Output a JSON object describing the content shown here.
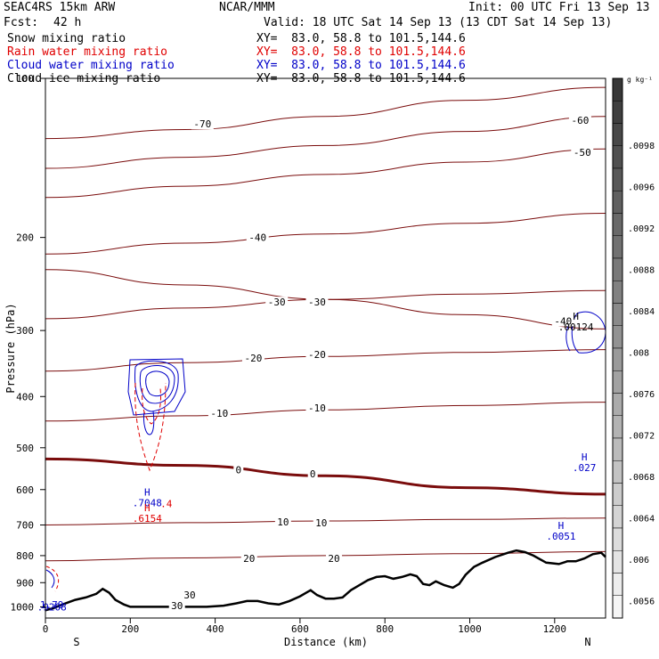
{
  "header": {
    "model": "SEAC4RS 15km ARW",
    "org": "NCAR/MMM",
    "init": "Init: 00 UTC Fri 13 Sep 13",
    "fcst_label": "Fcst:",
    "fcst_value": "42 h",
    "valid": "Valid: 18 UTC Sat 14 Sep 13 (13 CDT Sat 14 Sep 13)",
    "fields": [
      {
        "name": "Snow mixing ratio",
        "xy": "XY=  83.0, 58.8 to 101.5,144.6",
        "color": "#000000"
      },
      {
        "name": "Rain water mixing ratio",
        "xy": "XY=  83.0, 58.8 to 101.5,144.6",
        "color": "#e00000"
      },
      {
        "name": "Cloud water mixing ratio",
        "xy": "XY=  83.0, 58.8 to 101.5,144.6",
        "color": "#0000c8"
      },
      {
        "name": "Cloud ice mixing ratio",
        "xy": "XY=  83.0, 58.8 to 101.5,144.6",
        "color": "#000000"
      }
    ]
  },
  "chart_data": {
    "type": "contour-cross-section",
    "xlabel": "Distance (km)",
    "ylabel": "Pressure (hPa)",
    "xlim": [
      0,
      1320
    ],
    "ylim": [
      100,
      1050
    ],
    "y_scale": "log-p",
    "x_ticks": [
      "0",
      "200",
      "400",
      "600",
      "800",
      "1000",
      "1200"
    ],
    "y_ticks": [
      "100",
      "200",
      "300",
      "400",
      "500",
      "600",
      "700",
      "800",
      "900",
      "1000"
    ],
    "endpoints": {
      "left": "S",
      "right": "N"
    },
    "colorbar": {
      "unit": "g kg⁻¹",
      "labels": [
        ".0098",
        ".0096",
        ".0092",
        ".0088",
        ".0084",
        ".008",
        ".0076",
        ".0072",
        ".0068",
        ".0064",
        ".006",
        ".0056"
      ]
    },
    "temperature_contours_c": [
      {
        "label": "-70",
        "p": [
          130,
          125,
          118,
          110,
          104
        ]
      },
      {
        "label": "-60",
        "p": [
          148,
          141,
          134,
          126,
          118
        ]
      },
      {
        "label": "-50",
        "p": [
          168,
          160,
          152,
          144,
          136
        ]
      },
      {
        "label": "-40",
        "p": [
          215,
          205,
          197,
          188,
          180
        ]
      },
      {
        "label": "-40",
        "p": [
          230,
          246,
          262,
          280,
          298
        ]
      },
      {
        "label": "-30",
        "p": [
          285,
          272,
          262,
          256,
          252
        ]
      },
      {
        "label": "-20",
        "p": [
          358,
          345,
          336,
          330,
          326
        ]
      },
      {
        "label": "-10",
        "p": [
          445,
          435,
          424,
          416,
          410
        ]
      },
      {
        "label": "0",
        "p": [
          525,
          540,
          565,
          595,
          612
        ]
      },
      {
        "label": "10",
        "p": [
          700,
          693,
          688,
          683,
          679
        ]
      },
      {
        "label": "20",
        "p": [
          818,
          808,
          800,
          793,
          786
        ]
      }
    ],
    "contour_x_km": [
      0,
      330,
      660,
      990,
      1320
    ],
    "contour_labels": [
      {
        "text": "-70",
        "x": 370,
        "p": 122
      },
      {
        "text": "-60",
        "x": 1260,
        "p": 120
      },
      {
        "text": "-50",
        "x": 1265,
        "p": 138
      },
      {
        "text": "-40",
        "x": 500,
        "p": 200
      },
      {
        "text": "-40",
        "x": 1220,
        "p": 288
      },
      {
        "text": "-30",
        "x": 545,
        "p": 265
      },
      {
        "text": "-30",
        "x": 640,
        "p": 265
      },
      {
        "text": "-20",
        "x": 490,
        "p": 338
      },
      {
        "text": "-20",
        "x": 640,
        "p": 333
      },
      {
        "text": "-10",
        "x": 410,
        "p": 430
      },
      {
        "text": "-10",
        "x": 640,
        "p": 420
      },
      {
        "text": "0",
        "x": 455,
        "p": 550
      },
      {
        "text": "0",
        "x": 630,
        "p": 560
      },
      {
        "text": "10",
        "x": 560,
        "p": 690
      },
      {
        "text": "10",
        "x": 650,
        "p": 693
      },
      {
        "text": "20",
        "x": 480,
        "p": 810
      },
      {
        "text": "20",
        "x": 680,
        "p": 810
      },
      {
        "text": "30",
        "x": 340,
        "p": 950
      },
      {
        "text": "30",
        "x": 310,
        "p": 995
      }
    ],
    "maxima": [
      {
        "text": "H",
        "value": ".00124",
        "x": 1250,
        "p": 295,
        "color": "#000000"
      },
      {
        "text": "H",
        "value": ".027",
        "x": 1270,
        "p": 545,
        "color": "#0000c8"
      },
      {
        "text": "H",
        "value": ".7048",
        "x": 240,
        "p": 635,
        "color": "#0000c8"
      },
      {
        "text": "H",
        "value": ".6154",
        "x": 240,
        "p": 680,
        "color": "#e00000"
      },
      {
        "text": "H",
        "value": ".0051",
        "x": 1215,
        "p": 735,
        "color": "#0000c8"
      },
      {
        "text": "",
        "value": ".4",
        "x": 285,
        "p": 638,
        "color": "#e00000"
      },
      {
        "text": "",
        "value": "1.79",
        "x": 15,
        "p": 990,
        "color": "#0000c8"
      },
      {
        "text": "",
        "value": ".9208",
        "x": 15,
        "p": 1000,
        "color": "#0000c8"
      }
    ],
    "terrain": {
      "x": [
        0,
        20,
        40,
        70,
        95,
        120,
        135,
        150,
        165,
        185,
        200,
        220,
        260,
        300,
        340,
        380,
        420,
        450,
        475,
        500,
        525,
        550,
        575,
        600,
        625,
        640,
        660,
        680,
        700,
        720,
        740,
        760,
        780,
        800,
        820,
        840,
        860,
        875,
        890,
        905,
        920,
        940,
        960,
        975,
        990,
        1010,
        1030,
        1060,
        1090,
        1110,
        1130,
        1150,
        1180,
        1210,
        1230,
        1250,
        1270,
        1290,
        1310,
        1320
      ],
      "p": [
        1015,
        1005,
        990,
        970,
        960,
        945,
        925,
        940,
        970,
        990,
        1000,
        1000,
        1000,
        1000,
        1000,
        1000,
        995,
        985,
        975,
        975,
        985,
        990,
        975,
        955,
        930,
        950,
        965,
        965,
        960,
        930,
        910,
        890,
        878,
        875,
        885,
        878,
        868,
        875,
        905,
        910,
        895,
        910,
        920,
        905,
        870,
        840,
        825,
        805,
        790,
        782,
        788,
        800,
        825,
        830,
        820,
        820,
        810,
        795,
        790,
        805
      ]
    }
  }
}
